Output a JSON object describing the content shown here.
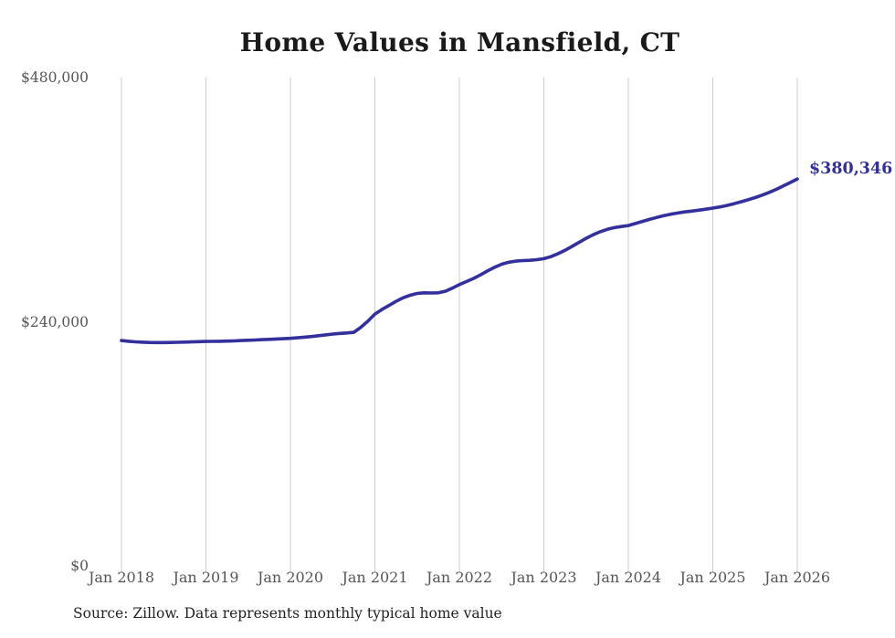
{
  "chart": {
    "title": "Home Values in Mansfield, CT",
    "end_label": "$380,346",
    "source_note": "Source: Zillow. Data represents monthly typical home value",
    "line_color": "#332f9c",
    "end_label_color": "#333199",
    "grid_color": "#cccccc",
    "axis_label_color": "#555555",
    "title_color": "#1a1a1a"
  },
  "chart_data": {
    "type": "line",
    "title": "Home Values in Mansfield, CT",
    "series_name": "Monthly typical home value",
    "xlabel": "",
    "ylabel": "",
    "ylim": [
      0,
      480000
    ],
    "grid": "vertical-only",
    "legend": "none",
    "final_value_annotation": "$380,346",
    "y_ticks": [
      {
        "value": 0,
        "label": "$0"
      },
      {
        "value": 240000,
        "label": "$240,000"
      },
      {
        "value": 480000,
        "label": "$480,000"
      }
    ],
    "x_tick_labels": [
      "Jan 2018",
      "Jan 2019",
      "Jan 2020",
      "Jan 2021",
      "Jan 2022",
      "Jan 2023",
      "Jan 2024",
      "Jan 2025",
      "Jan 2026"
    ],
    "x": [
      "2018-01",
      "2018-02",
      "2018-03",
      "2018-04",
      "2018-05",
      "2018-06",
      "2018-07",
      "2018-08",
      "2018-09",
      "2018-10",
      "2018-11",
      "2018-12",
      "2019-01",
      "2019-02",
      "2019-03",
      "2019-04",
      "2019-05",
      "2019-06",
      "2019-07",
      "2019-08",
      "2019-09",
      "2019-10",
      "2019-11",
      "2019-12",
      "2020-01",
      "2020-02",
      "2020-03",
      "2020-04",
      "2020-05",
      "2020-06",
      "2020-07",
      "2020-08",
      "2020-09",
      "2020-10",
      "2020-11",
      "2020-12",
      "2021-01",
      "2021-02",
      "2021-03",
      "2021-04",
      "2021-05",
      "2021-06",
      "2021-07",
      "2021-08",
      "2021-09",
      "2021-10",
      "2021-11",
      "2021-12",
      "2022-01",
      "2022-02",
      "2022-03",
      "2022-04",
      "2022-05",
      "2022-06",
      "2022-07",
      "2022-08",
      "2022-09",
      "2022-10",
      "2022-11",
      "2022-12",
      "2023-01",
      "2023-02",
      "2023-03",
      "2023-04",
      "2023-05",
      "2023-06",
      "2023-07",
      "2023-08",
      "2023-09",
      "2023-10",
      "2023-11",
      "2023-12",
      "2024-01",
      "2024-02",
      "2024-03",
      "2024-04",
      "2024-05",
      "2024-06",
      "2024-07",
      "2024-08",
      "2024-09",
      "2024-10",
      "2024-11",
      "2024-12",
      "2025-01",
      "2025-02",
      "2025-03",
      "2025-04",
      "2025-05",
      "2025-06",
      "2025-07",
      "2025-08",
      "2025-09",
      "2025-10",
      "2025-11",
      "2025-12",
      "2026-01"
    ],
    "values": [
      221500,
      220800,
      220300,
      219900,
      219600,
      219500,
      219500,
      219600,
      219800,
      220000,
      220200,
      220400,
      220600,
      220700,
      220800,
      221000,
      221200,
      221500,
      221800,
      222100,
      222400,
      222700,
      223000,
      223300,
      223700,
      224200,
      224800,
      225500,
      226300,
      227100,
      227900,
      228500,
      229000,
      229600,
      234500,
      240500,
      247500,
      252000,
      256000,
      260000,
      263500,
      266000,
      267800,
      268400,
      268300,
      268400,
      270000,
      273000,
      276500,
      279500,
      282500,
      286000,
      290000,
      293500,
      296500,
      298500,
      299600,
      300100,
      300400,
      301000,
      302000,
      304000,
      306800,
      310200,
      314000,
      318000,
      322000,
      325500,
      328500,
      330800,
      332500,
      333600,
      334600,
      336500,
      338600,
      340600,
      342500,
      344200,
      345700,
      346900,
      347900,
      348700,
      349600,
      350600,
      351700,
      352900,
      354300,
      356000,
      357900,
      359900,
      362000,
      364400,
      367100,
      370100,
      373400,
      376800,
      380346
    ]
  }
}
